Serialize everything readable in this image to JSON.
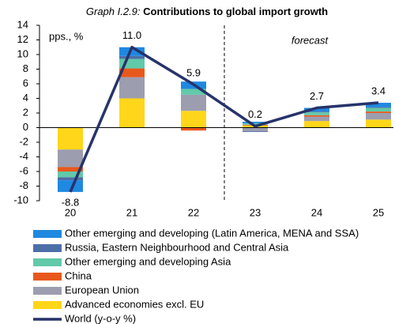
{
  "chart_data": {
    "type": "bar",
    "title_label": "Graph I.2.9:",
    "title": "Contributions to global import growth",
    "y_label": "pps., %",
    "annotation": "forecast",
    "categories": [
      "20",
      "21",
      "22",
      "23",
      "24",
      "25"
    ],
    "ylim": [
      -10,
      14
    ],
    "yticks": [
      -10,
      -8,
      -6,
      -4,
      -2,
      0,
      2,
      4,
      6,
      8,
      10,
      12,
      14
    ],
    "stacked": true,
    "series": [
      {
        "name": "Advanced economies excl. EU",
        "color": "#ffd619",
        "values": [
          -3.0,
          4.0,
          2.3,
          0.3,
          0.9,
          1.1
        ]
      },
      {
        "name": "European Union",
        "color": "#9d9db0",
        "values": [
          -2.4,
          2.9,
          2.2,
          -0.5,
          0.6,
          0.9
        ]
      },
      {
        "name": "China",
        "color": "#e8581c",
        "values": [
          -0.6,
          1.2,
          -0.4,
          0.1,
          0.2,
          0.2
        ]
      },
      {
        "name": "Other emerging and developing Asia",
        "color": "#62c9a9",
        "values": [
          -0.8,
          1.3,
          0.8,
          0.2,
          0.4,
          0.5
        ]
      },
      {
        "name": "Russia, Eastern Neighbourhood and Central Asia",
        "color": "#4d6fa8",
        "values": [
          -0.4,
          0.4,
          0,
          -0.1,
          0.1,
          0.1
        ]
      },
      {
        "name": "Other emerging and developing (Latin America, MENA and SSA)",
        "color": "#1f88e0",
        "values": [
          -1.6,
          1.2,
          1.0,
          0.2,
          0.5,
          0.6
        ]
      },
      {
        "name": "World (y-o-y %)",
        "type": "line",
        "color": "#27336a",
        "values": [
          -8.8,
          11.0,
          5.9,
          0.2,
          2.7,
          3.4
        ],
        "value_labels": [
          "-8.8",
          "11.0",
          "5.9",
          "0.2",
          "2.7",
          "3.4"
        ]
      }
    ]
  }
}
